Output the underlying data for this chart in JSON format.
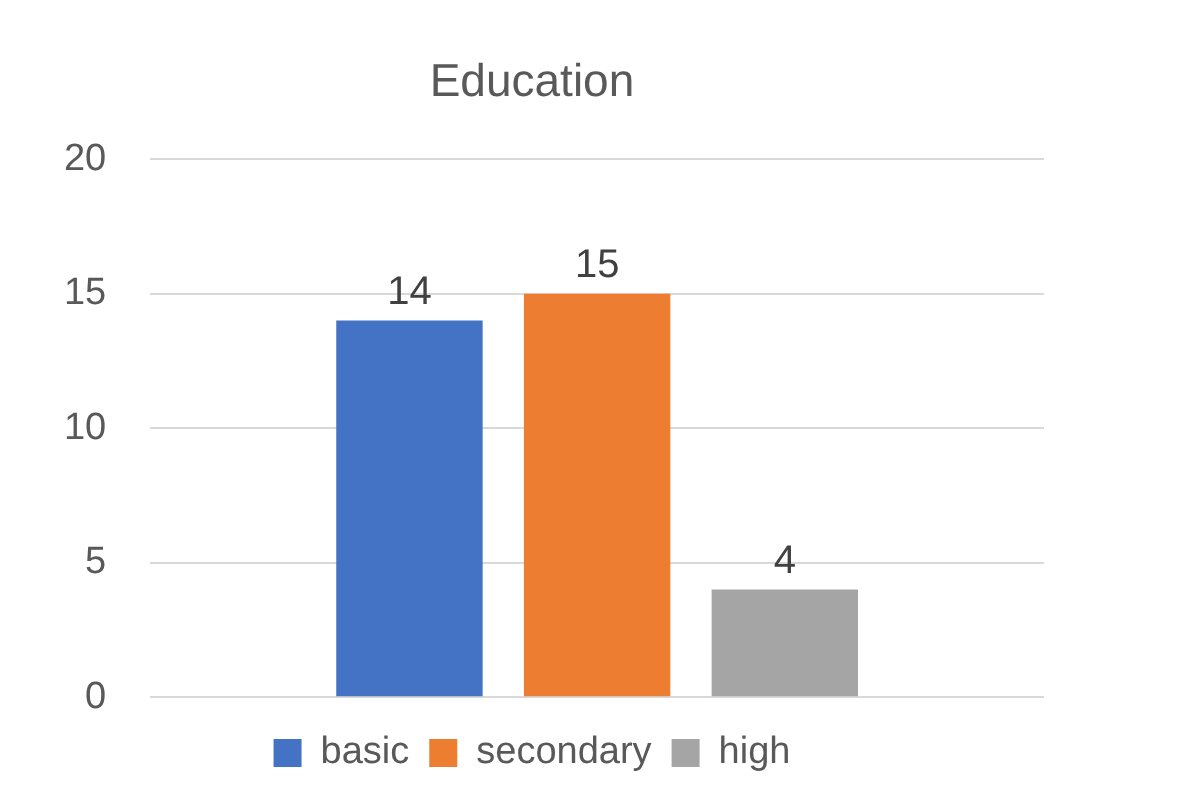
{
  "chart_data": {
    "type": "bar",
    "title": "Education",
    "categories": [
      null
    ],
    "series": [
      {
        "name": "basic",
        "color": "#4472c4",
        "values": [
          14
        ]
      },
      {
        "name": "secondary",
        "color": "#ed7d31",
        "values": [
          15
        ]
      },
      {
        "name": "high",
        "color": "#a5a5a5",
        "values": [
          4
        ]
      }
    ],
    "ylim": [
      0,
      20
    ],
    "yticks": [
      0,
      5,
      10,
      15,
      20
    ],
    "grid": "y",
    "legend": "bottom",
    "data_labels": true
  }
}
